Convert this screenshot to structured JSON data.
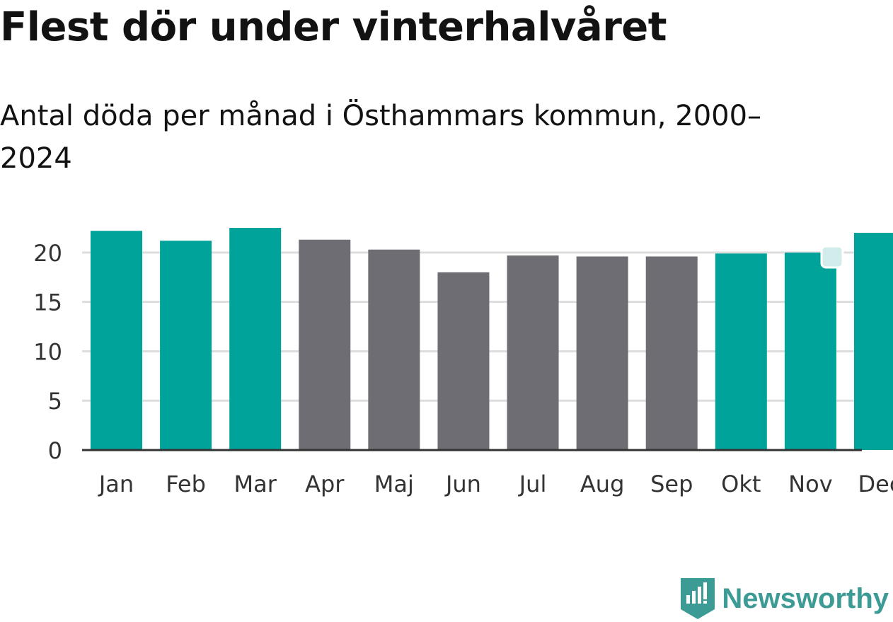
{
  "chart_data": {
    "type": "bar",
    "title": "Flest dör under vinterhalvåret",
    "subtitle": "Antal döda per månad i Östhammars kommun, 2000–2024",
    "categories": [
      "Jan",
      "Feb",
      "Mar",
      "Apr",
      "Maj",
      "Jun",
      "Jul",
      "Aug",
      "Sep",
      "Okt",
      "Nov",
      "Dec"
    ],
    "values": [
      22.2,
      21.2,
      22.5,
      21.3,
      20.3,
      18.0,
      19.7,
      19.6,
      19.6,
      19.9,
      20.0,
      22.0
    ],
    "highlight": [
      true,
      true,
      true,
      false,
      false,
      false,
      false,
      false,
      false,
      true,
      true,
      true
    ],
    "yticks": [
      0,
      5,
      10,
      15,
      20
    ],
    "ylim": [
      0,
      22.5
    ],
    "grid": true,
    "xlabel": "",
    "ylabel": "",
    "colors": {
      "highlight": "#00a39a",
      "base": "#6e6d73",
      "grid": "#dddddd",
      "axis": "#333333"
    }
  },
  "brand": {
    "name": "Newsworthy",
    "color": "#3d9b96",
    "icon": "newsworthy-logo-icon"
  }
}
